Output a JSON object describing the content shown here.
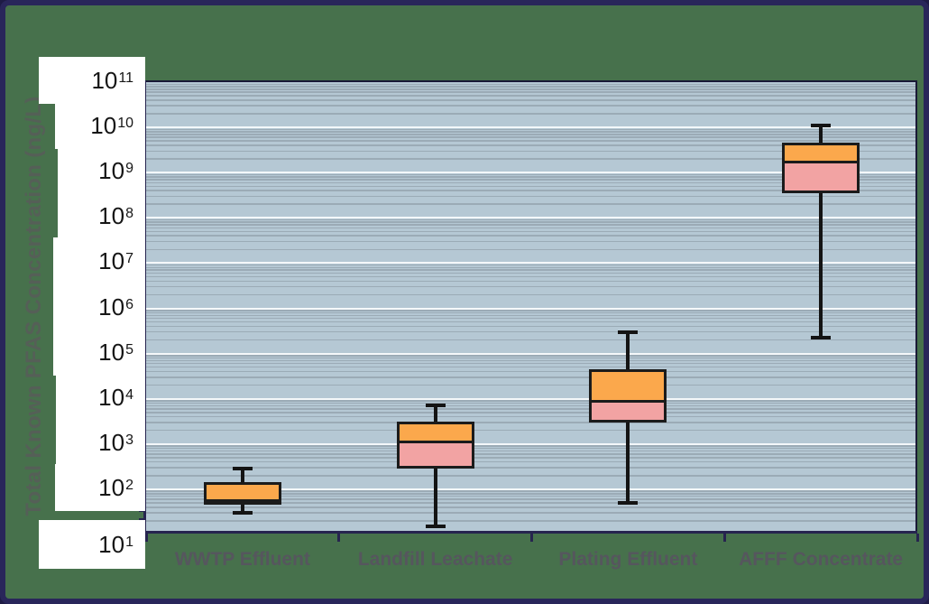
{
  "figure": {
    "frame_color": "#29265A",
    "background_color": "#47714C",
    "plot_background_color": "#B5C8D4"
  },
  "chart_data": {
    "type": "box",
    "title": "",
    "xlabel": "",
    "ylabel": "Total Known PFAS Concentration (ng/L)",
    "y_scale": "log",
    "ylim": [
      10,
      100000000000
    ],
    "ylim_exponents": [
      1,
      11
    ],
    "grid": "horizontal log gridlines, white majors with faint minors",
    "legend": "none",
    "y_ticks": [
      {
        "base": "10",
        "exp": "11"
      },
      {
        "base": "10",
        "exp": "10"
      },
      {
        "base": "10",
        "exp": "9"
      },
      {
        "base": "10",
        "exp": "8"
      },
      {
        "base": "10",
        "exp": "7"
      },
      {
        "base": "10",
        "exp": "6"
      },
      {
        "base": "10",
        "exp": "5"
      },
      {
        "base": "10",
        "exp": "4"
      },
      {
        "base": "10",
        "exp": "3"
      },
      {
        "base": "10",
        "exp": "2"
      },
      {
        "base": "10",
        "exp": "1"
      }
    ],
    "categories": [
      "WWTP Effluent",
      "Landfill Leachate",
      "Plating Effluent",
      "AFFF Concentrate"
    ],
    "series": [
      {
        "name": "WWTP Effluent",
        "whisker_low": 30,
        "q1": 45,
        "median": 55,
        "q3": 145,
        "whisker_high": 280
      },
      {
        "name": "Landfill Leachate",
        "whisker_low": 15,
        "q1": 280,
        "median": 1200,
        "q3": 3100,
        "whisker_high": 7000
      },
      {
        "name": "Plating Effluent",
        "whisker_low": 50,
        "q1": 3000,
        "median": 9500,
        "q3": 45000,
        "whisker_high": 290000
      },
      {
        "name": "AFFF Concentrate",
        "whisker_low": 220000,
        "q1": 350000000,
        "median": 1800000000,
        "q3": 4600000000,
        "whisker_high": 11000000000
      }
    ],
    "colors": {
      "box_upper_fill": "#FBA84C",
      "box_lower_fill": "#F2A3A3",
      "box_border": "#1B1B1B",
      "whisker": "#141414",
      "axis": "#26244F",
      "gridline_major": "#F4F8FA",
      "tick_label": "#161616",
      "category_label": "#56565E",
      "axis_title": "#585D59"
    }
  }
}
